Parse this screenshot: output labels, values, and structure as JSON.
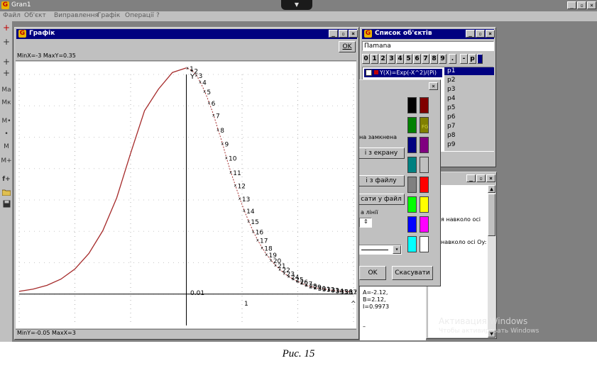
{
  "app": {
    "title": "Gran1",
    "icon_letter": "G",
    "tab_glyph": "▼",
    "min_label": "_",
    "max_label": "▫",
    "close_label": "×"
  },
  "menu": {
    "items": [
      "Файл",
      "Об'єкт",
      "Виправлення",
      "Графік",
      "Операції",
      "?"
    ]
  },
  "toolbar": {
    "items": [
      "+",
      "+",
      "+",
      "+",
      "Ma",
      "Mк",
      "M•",
      "•",
      "M",
      "M+",
      "f+",
      "folder-icon",
      "save-icon"
    ]
  },
  "graph_window": {
    "title": "Графік",
    "ok_label": "OK",
    "range_top": "MinX=-3  MaxY=0.35",
    "range_bottom": "MinY=-0.05  MaxX=3",
    "axis_y_label": "Y",
    "origin_label": "0.01",
    "x_tick_label": "1",
    "arrow_label": "^"
  },
  "chart_data": {
    "type": "line",
    "xlim": [
      -3,
      3
    ],
    "ylim": [
      -0.05,
      0.35
    ],
    "curve": [
      [
        -3,
        0.0044
      ],
      [
        -2.75,
        0.0078
      ],
      [
        -2.5,
        0.0139
      ],
      [
        -2.25,
        0.0239
      ],
      [
        -2,
        0.0399
      ],
      [
        -1.75,
        0.0646
      ],
      [
        -1.5,
        0.101
      ],
      [
        -1.25,
        0.1533
      ],
      [
        -1,
        0.2243
      ],
      [
        -0.75,
        0.2922
      ],
      [
        -0.5,
        0.3267
      ],
      [
        -0.25,
        0.3532
      ],
      [
        0,
        0.3605
      ]
    ],
    "points": [
      [
        0.02,
        0.36
      ],
      [
        0.1,
        0.356
      ],
      [
        0.18,
        0.349
      ],
      [
        0.25,
        0.338
      ],
      [
        0.33,
        0.323
      ],
      [
        0.41,
        0.305
      ],
      [
        0.49,
        0.285
      ],
      [
        0.57,
        0.262
      ],
      [
        0.65,
        0.24
      ],
      [
        0.72,
        0.217
      ],
      [
        0.8,
        0.194
      ],
      [
        0.88,
        0.173
      ],
      [
        0.96,
        0.152
      ],
      [
        1.04,
        0.133
      ],
      [
        1.12,
        0.116
      ],
      [
        1.2,
        0.1
      ],
      [
        1.28,
        0.086
      ],
      [
        1.36,
        0.074
      ],
      [
        1.44,
        0.063
      ],
      [
        1.52,
        0.054
      ],
      [
        1.6,
        0.046
      ],
      [
        1.68,
        0.039
      ],
      [
        1.76,
        0.033
      ],
      [
        1.84,
        0.028
      ],
      [
        1.92,
        0.024
      ],
      [
        2.0,
        0.02
      ],
      [
        2.08,
        0.017
      ],
      [
        2.16,
        0.014
      ],
      [
        2.24,
        0.012
      ],
      [
        2.32,
        0.01
      ],
      [
        2.4,
        0.009
      ],
      [
        2.48,
        0.008
      ],
      [
        2.56,
        0.007
      ],
      [
        2.64,
        0.006
      ],
      [
        2.72,
        0.005
      ],
      [
        2.8,
        0.005
      ],
      [
        2.88,
        0.004
      ],
      [
        2.96,
        0.004
      ]
    ],
    "point_labels": [
      "1",
      "2",
      "3",
      "4",
      "5",
      "6",
      "7",
      "8",
      "9",
      "10",
      "11",
      "12",
      "13",
      "14",
      "15",
      "16",
      "17",
      "18",
      "19",
      "20",
      "21",
      "22",
      "23",
      "24",
      "25",
      "26",
      "27",
      "28",
      "29",
      "30",
      "31",
      "32",
      "33",
      "34",
      "35",
      "36",
      "37",
      "38"
    ],
    "grid": true,
    "curve_color": "#a52a2a",
    "points_color": "#000000"
  },
  "objects_window": {
    "title": "Список об'єктів",
    "name_value": "Пamana",
    "num_buttons": [
      "0",
      "1",
      "2",
      "3",
      "4",
      "5",
      "6",
      "7",
      "8",
      "9",
      ".",
      "-",
      "p"
    ],
    "list_item": "Y(X)=Exp(-X^2)/(Pi)",
    "points": [
      "p1",
      "p2",
      "p3",
      "p4",
      "p5",
      "p6",
      "p7",
      "p8",
      "p9"
    ]
  },
  "style_dialog": {
    "closed_label": "на замкнена",
    "screen_button": "і з екрану",
    "file_button": "і з файлу",
    "save_file_button": "сати у файл",
    "line_label": "а лінії",
    "ok_label": "OK",
    "cancel_label": "Скасувати",
    "fg_label": "FG",
    "colors": [
      "#000000",
      "#800000",
      "#008000",
      "#808000",
      "#000080",
      "#800080",
      "#008080",
      "#c0c0c0",
      "#808080",
      "#ff0000",
      "#00ff00",
      "#ffff00",
      "#0000ff",
      "#ff00ff",
      "#00ffff",
      "#ffffff"
    ]
  },
  "result_window": {
    "rot_x": "я навколо осі",
    "rot_y": "навколо осі Oy:",
    "a_value": "A=-2.12,",
    "b_value": "B=2.12,",
    "i_value": "I=0.9973",
    "dash": "–"
  },
  "watermark": {
    "line1": "Активация Windows",
    "line2": "Чтобы активировать Windows"
  },
  "caption": "Рис. 15"
}
